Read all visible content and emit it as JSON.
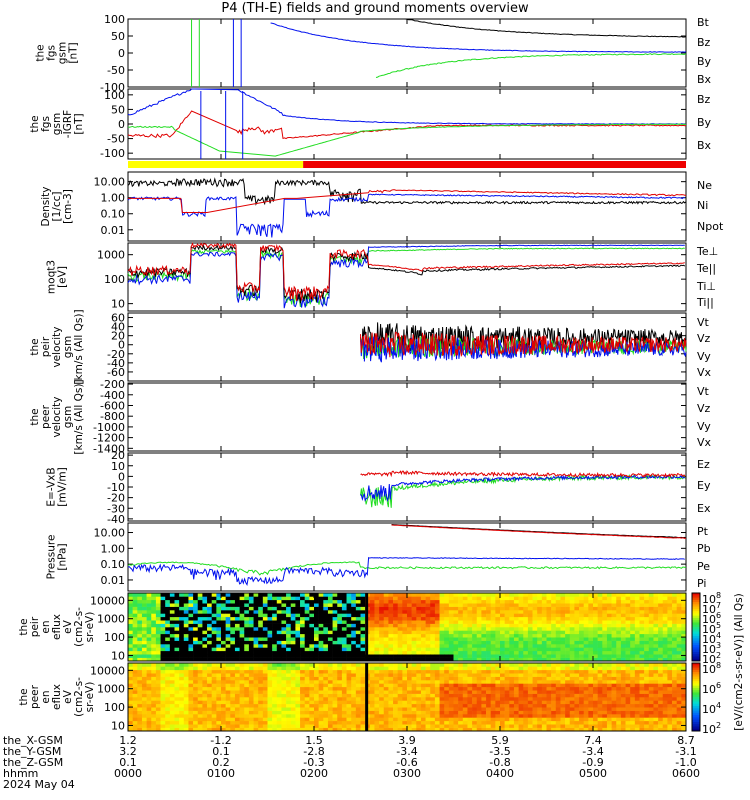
{
  "title": "P4 (TH-E) fields and ground moments overview",
  "colors": {
    "black": "#000000",
    "red": "#e00000",
    "green": "#22dd22",
    "blue": "#0010ee",
    "bar_yellow": "#ffff00",
    "bar_red": "#ee0000"
  },
  "chart_data": [
    {
      "type": "line",
      "id": "fgs",
      "ylabel": [
        "the",
        "fgs",
        "gsm",
        "[nT]"
      ],
      "ylim": [
        -100,
        100
      ],
      "yscale": "linear",
      "yticks": [
        "100",
        "50",
        "0",
        "-50",
        "-100"
      ],
      "series": [
        {
          "name": "Bt",
          "color": "black"
        },
        {
          "name": "Bz",
          "color": "red"
        },
        {
          "name": "By",
          "color": "green"
        },
        {
          "name": "Bx",
          "color": "blue"
        }
      ]
    },
    {
      "type": "line",
      "id": "fgs_dsl",
      "ylabel": [
        "the",
        "fgs",
        "gsm",
        "-IGRF",
        "[nT]"
      ],
      "ylim": [
        -120,
        120
      ],
      "yscale": "linear",
      "yticks": [
        "100",
        "50",
        "0",
        "-50",
        "-100"
      ],
      "series": [
        {
          "name": "Bz",
          "color": "red"
        },
        {
          "name": "By",
          "color": "green"
        },
        {
          "name": "Bx",
          "color": "blue"
        }
      ]
    },
    {
      "type": "line",
      "id": "density",
      "ylabel": [
        "Density",
        "[1/cc]",
        "[cm-3]"
      ],
      "ylim": [
        0.002,
        40
      ],
      "yscale": "log",
      "yticks": [
        "10.00",
        "1.00",
        "0.10",
        "0.01"
      ],
      "series": [
        {
          "name": "Ne",
          "color": "red"
        },
        {
          "name": "Ni",
          "color": "black"
        },
        {
          "name": "Npot",
          "color": "blue"
        }
      ]
    },
    {
      "type": "line",
      "id": "temp",
      "ylabel": [
        "moqt3",
        "[eV]"
      ],
      "ylim": [
        5,
        3000
      ],
      "yscale": "log",
      "yticks": [
        "1000",
        "100",
        "10"
      ],
      "series": [
        {
          "name": "Te⊥",
          "color": "red"
        },
        {
          "name": "Te||",
          "color": "black"
        },
        {
          "name": "Ti⊥",
          "color": "blue"
        },
        {
          "name": "Ti||",
          "color": "green"
        }
      ]
    },
    {
      "type": "line",
      "id": "peir_vel",
      "ylabel": [
        "the",
        "peir",
        "velocity",
        "gsm",
        "[km/s (All Qs)]"
      ],
      "ylim": [
        -80,
        70
      ],
      "yscale": "linear",
      "yticks": [
        "60",
        "40",
        "20",
        "0",
        "-20",
        "-40",
        "-60"
      ],
      "series": [
        {
          "name": "Vt",
          "color": "black"
        },
        {
          "name": "Vz",
          "color": "red"
        },
        {
          "name": "Vy",
          "color": "green"
        },
        {
          "name": "Vx",
          "color": "blue"
        }
      ]
    },
    {
      "type": "line",
      "id": "peer_vel",
      "ylabel": [
        "the",
        "peer",
        "velocity",
        "gsm",
        "[km/s (All Qs)]"
      ],
      "ylim": [
        -1450,
        -180
      ],
      "yscale": "linear",
      "yticks": [
        "-200",
        "-400",
        "-600",
        "-800",
        "-1000",
        "-1200",
        "-1400"
      ],
      "series": [
        {
          "name": "Vt",
          "color": "black"
        },
        {
          "name": "Vz",
          "color": "red"
        },
        {
          "name": "Vy",
          "color": "green"
        },
        {
          "name": "Vx",
          "color": "blue"
        }
      ]
    },
    {
      "type": "line",
      "id": "efield",
      "ylabel": [
        "E=-VxB",
        "[mV/m]"
      ],
      "ylim": [
        -42,
        22
      ],
      "yscale": "linear",
      "yticks": [
        "20",
        "10",
        "0",
        "-10",
        "-20",
        "-30",
        "-40"
      ],
      "series": [
        {
          "name": "Ez",
          "color": "red"
        },
        {
          "name": "Ey",
          "color": "green"
        },
        {
          "name": "Ex",
          "color": "blue"
        }
      ]
    },
    {
      "type": "line",
      "id": "pressure",
      "ylabel": [
        "Pressure",
        "[nPa]"
      ],
      "ylim": [
        0.002,
        40
      ],
      "yscale": "log",
      "yticks": [
        "10.00",
        "1.00",
        "0.10",
        "0.01"
      ],
      "series": [
        {
          "name": "Pt",
          "color": "black"
        },
        {
          "name": "Pb",
          "color": "red"
        },
        {
          "name": "Pe",
          "color": "green"
        },
        {
          "name": "Pi",
          "color": "blue"
        }
      ]
    },
    {
      "type": "heatmap",
      "id": "peir_en",
      "ylabel": [
        "the",
        "peir",
        "en",
        "eflux",
        "eV",
        "(cm2-s-",
        "sr-eV)"
      ],
      "ylim": [
        5,
        25000
      ],
      "yscale": "log",
      "yticks": [
        "10000",
        "1000",
        "100",
        "10"
      ]
    },
    {
      "type": "heatmap",
      "id": "peer_en",
      "ylabel": [
        "the",
        "peer",
        "en",
        "eflux",
        "eV",
        "(cm2-s-",
        "sr-eV)"
      ],
      "ylim": [
        5,
        25000
      ],
      "yscale": "log",
      "yticks": [
        "10000",
        "1000",
        "100",
        "10"
      ]
    }
  ],
  "colorbar": {
    "label": "[eV/(cm2-s-sr-eV)] (All Qs)",
    "ticks_top": [
      "10^8",
      "10^7",
      "10^6",
      "10^5",
      "10^4",
      "10^3",
      "10^2"
    ],
    "ticks_bottom": [
      "10^8",
      "10^6",
      "10^4",
      "10^2"
    ]
  },
  "state_bar": {
    "segments": [
      {
        "from": "0000",
        "to": "0153",
        "color": "bar_yellow"
      },
      {
        "from": "0153",
        "to": "0600",
        "color": "bar_red"
      }
    ]
  },
  "footer": {
    "rows": [
      {
        "label": "the_X-GSM",
        "values": [
          "1.2",
          "-1.2",
          "1.5",
          "3.9",
          "5.9",
          "7.4",
          "8.7"
        ]
      },
      {
        "label": "the_Y-GSM",
        "values": [
          "3.2",
          "0.1",
          "-2.8",
          "-3.4",
          "-3.5",
          "-3.4",
          "-3.1"
        ]
      },
      {
        "label": "the_Z-GSM",
        "values": [
          "0.1",
          "0.2",
          "-0.3",
          "-0.6",
          "-0.8",
          "-0.9",
          "-1.0"
        ]
      },
      {
        "label": "hhmm",
        "values": [
          "0000",
          "0100",
          "0200",
          "0300",
          "0400",
          "0500",
          "0600"
        ]
      }
    ],
    "date": "2024 May 04"
  }
}
